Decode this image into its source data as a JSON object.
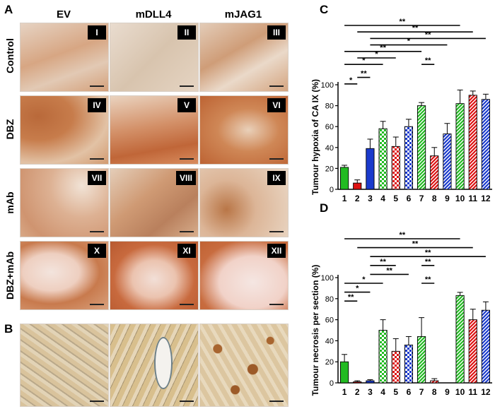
{
  "figure": {
    "panels": {
      "A": "A",
      "B": "B",
      "C": "C",
      "D": "D"
    },
    "columns": [
      "EV",
      "mDLL4",
      "mJAG1"
    ],
    "rows": [
      "Control",
      "DBZ",
      "mAb",
      "DBZ+mAb"
    ],
    "roman_labels": [
      "I",
      "II",
      "III",
      "IV",
      "V",
      "VI",
      "VII",
      "VIII",
      "IX",
      "X",
      "XI",
      "XII"
    ],
    "texture_colors": {
      "pale": "#e8d6c6",
      "mid": "#d9a77e",
      "strong": "#c9753f",
      "fibrous": "#cfc3b4",
      "stain_b": "#d9c59a",
      "vessel": "#6d8088"
    }
  },
  "chart_data": [
    {
      "type": "bar",
      "panel": "C",
      "ylabel": "Tumour hypoxia of CA IX (%)",
      "xlabel": "",
      "categories": [
        "1",
        "2",
        "3",
        "4",
        "5",
        "6",
        "7",
        "8",
        "9",
        "10",
        "11",
        "12"
      ],
      "values": [
        21,
        6,
        39,
        58,
        41,
        60,
        80,
        32,
        53,
        82,
        90,
        86
      ],
      "errors": [
        2,
        3,
        9,
        7,
        9,
        7,
        3,
        8,
        10,
        13,
        4,
        5
      ],
      "ylim": [
        0,
        100
      ],
      "yticks": [
        0,
        20,
        40,
        60,
        80,
        100
      ],
      "bar_colors": [
        "#22bb22",
        "#dd1111",
        "#1a3acc",
        "#22bb22",
        "#dd1111",
        "#1a3acc",
        "#22bb22",
        "#dd1111",
        "#1a3acc",
        "#22bb22",
        "#dd1111",
        "#1a3acc"
      ],
      "bar_patterns": [
        "solid",
        "solid",
        "solid",
        "check",
        "check",
        "check",
        "hatch",
        "hatch",
        "hatch",
        "hatch",
        "hatch",
        "hatch"
      ],
      "significance": [
        {
          "from": "1",
          "to": "10",
          "label": "**",
          "level": 1
        },
        {
          "from": "2",
          "to": "11",
          "label": "**",
          "level": 2
        },
        {
          "from": "3",
          "to": "12",
          "label": "**",
          "level": 3
        },
        {
          "from": "3",
          "to": "9",
          "label": "*",
          "level": 4
        },
        {
          "from": "1",
          "to": "7",
          "label": "**",
          "level": 5
        },
        {
          "from": "2",
          "to": "5",
          "label": "*",
          "level": 6
        },
        {
          "from": "1",
          "to": "4",
          "label": "*",
          "level": 7
        },
        {
          "from": "7",
          "to": "8",
          "label": "**",
          "level": 7
        },
        {
          "from": "2",
          "to": "3",
          "label": "**",
          "level": 9
        },
        {
          "from": "1",
          "to": "2",
          "label": "*",
          "level": 10
        }
      ]
    },
    {
      "type": "bar",
      "panel": "D",
      "ylabel": "Tumour necrosis per section (%)",
      "xlabel": "",
      "categories": [
        "1",
        "2",
        "3",
        "4",
        "5",
        "6",
        "7",
        "8",
        "9",
        "10",
        "11",
        "12"
      ],
      "values": [
        20,
        1,
        2,
        50,
        30,
        36,
        44,
        2,
        0,
        83,
        60,
        69
      ],
      "errors": [
        7,
        1,
        1,
        10,
        12,
        8,
        18,
        2,
        0,
        3,
        10,
        8
      ],
      "ylim": [
        0,
        100
      ],
      "yticks": [
        0,
        20,
        40,
        60,
        80,
        100
      ],
      "bar_colors": [
        "#22bb22",
        "#dd1111",
        "#1a3acc",
        "#22bb22",
        "#dd1111",
        "#1a3acc",
        "#22bb22",
        "#dd1111",
        "#1a3acc",
        "#22bb22",
        "#dd1111",
        "#1a3acc"
      ],
      "bar_patterns": [
        "solid",
        "solid",
        "solid",
        "check",
        "check",
        "check",
        "hatch",
        "hatch",
        "hatch",
        "hatch",
        "hatch",
        "hatch"
      ],
      "significance": [
        {
          "from": "1",
          "to": "10",
          "label": "**",
          "level": 1
        },
        {
          "from": "2",
          "to": "11",
          "label": "**",
          "level": 2
        },
        {
          "from": "3",
          "to": "12",
          "label": "**",
          "level": 3
        },
        {
          "from": "3",
          "to": "5",
          "label": "**",
          "level": 4
        },
        {
          "from": "7",
          "to": "8",
          "label": "**",
          "level": 4
        },
        {
          "from": "3",
          "to": "6",
          "label": "**",
          "level": 5
        },
        {
          "from": "7",
          "to": "8",
          "label": "**",
          "level": 6
        },
        {
          "from": "1",
          "to": "4",
          "label": "*",
          "level": 6
        },
        {
          "from": "1",
          "to": "3",
          "label": "*",
          "level": 7
        },
        {
          "from": "1",
          "to": "2",
          "label": "**",
          "level": 8
        }
      ]
    }
  ]
}
